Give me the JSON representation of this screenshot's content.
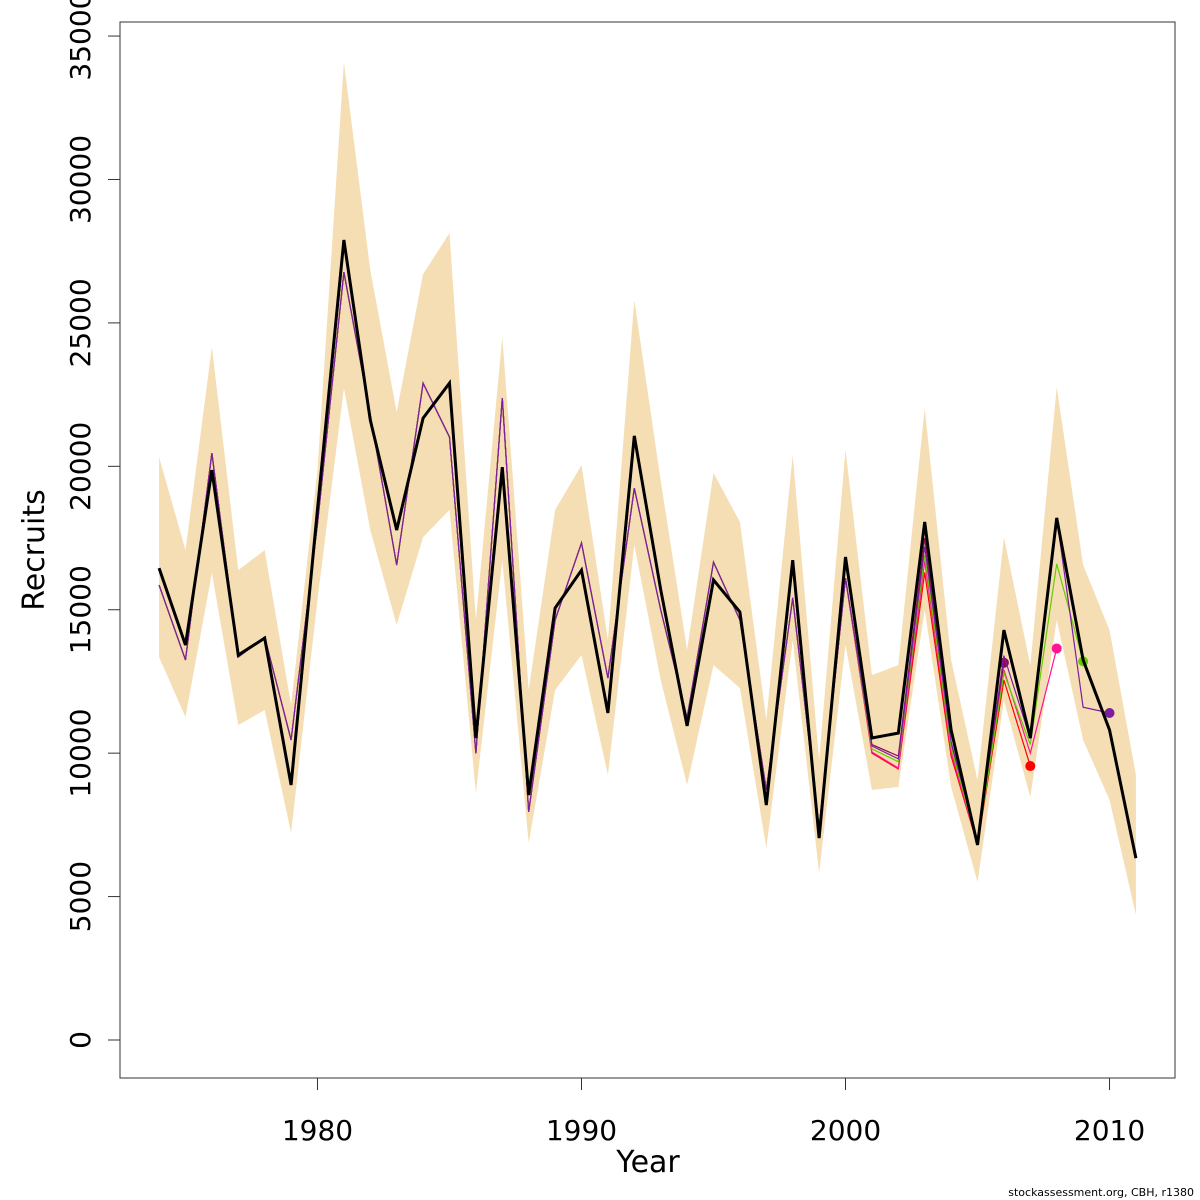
{
  "chart_data": {
    "type": "line",
    "x_label": "Year",
    "y_label": "Recruits",
    "footer": "stockassessment.org, CBH, r1380",
    "x": [
      1974,
      1975,
      1976,
      1977,
      1978,
      1979,
      1980,
      1981,
      1982,
      1983,
      1984,
      1985,
      1986,
      1987,
      1988,
      1989,
      1990,
      1991,
      1992,
      1993,
      1994,
      1995,
      1996,
      1997,
      1998,
      1999,
      2000,
      2001,
      2002,
      2003,
      2004,
      2005,
      2006,
      2007,
      2008,
      2009,
      2010,
      2011
    ],
    "band_color": "#f5deb3",
    "ci_upper": [
      20320,
      17080,
      24160,
      16380,
      17080,
      11680,
      19870,
      34090,
      26840,
      21890,
      26700,
      28130,
      14640,
      24510,
      12200,
      18480,
      20040,
      13940,
      25800,
      19500,
      13600,
      19770,
      18060,
      11160,
      20390,
      9760,
      20570,
      12720,
      13070,
      22030,
      13250,
      9060,
      17530,
      13070,
      22760,
      16560,
      14290,
      9240
    ],
    "ci_lower": [
      13350,
      11260,
      16280,
      10980,
      11500,
      7220,
      15340,
      22730,
      17780,
      14470,
      17530,
      18480,
      8610,
      16730,
      6870,
      12200,
      13420,
      9240,
      17260,
      12550,
      8890,
      13070,
      12270,
      6690,
      13940,
      5820,
      13770,
      8720,
      8820,
      14990,
      8820,
      5510,
      11850,
      8470,
      14640,
      10460,
      8370,
      4360
    ],
    "series": [
      {
        "color": "#8b0a50",
        "values": [
          15860,
          13250,
          20460,
          13350,
          14050,
          10460,
          18000,
          26770,
          21790,
          16560,
          22900,
          21020,
          10000,
          22380,
          7950,
          14640,
          17330,
          12620,
          19240,
          15000,
          11230,
          16660,
          14640,
          8720,
          15410,
          7390,
          16100,
          10300,
          9900,
          17500,
          10300,
          6900,
          13150,
          null,
          null,
          null,
          null,
          null
        ]
      },
      {
        "color": "#ff0000",
        "values": [
          15860,
          13250,
          20460,
          13350,
          14050,
          10460,
          18000,
          26770,
          21790,
          16560,
          22900,
          21020,
          10000,
          22380,
          7950,
          14640,
          17330,
          12620,
          19240,
          15000,
          11230,
          16660,
          14640,
          8720,
          15410,
          7390,
          16100,
          10000,
          9450,
          16300,
          9900,
          6800,
          12550,
          9550,
          null,
          null,
          null,
          null
        ]
      },
      {
        "color": "#ff1493",
        "values": [
          15860,
          13250,
          20460,
          13350,
          14050,
          10460,
          18000,
          26770,
          21790,
          16560,
          22900,
          21020,
          10000,
          22380,
          7950,
          14640,
          17330,
          12620,
          19240,
          15000,
          11230,
          16660,
          14640,
          8720,
          15410,
          7390,
          16100,
          10040,
          9480,
          16700,
          10040,
          6800,
          12900,
          10000,
          13650,
          null,
          null,
          null
        ]
      },
      {
        "color": "#66cc00",
        "values": [
          15860,
          13250,
          20460,
          13350,
          14050,
          10460,
          18000,
          26770,
          21790,
          16560,
          22900,
          21020,
          10000,
          22380,
          7950,
          14640,
          17330,
          12620,
          19240,
          15000,
          11230,
          16660,
          14640,
          8720,
          15410,
          7390,
          16100,
          10150,
          9700,
          16900,
          10200,
          6850,
          12800,
          10300,
          16600,
          13200,
          null,
          null
        ]
      },
      {
        "color": "#7a1fa2",
        "values": [
          15860,
          13250,
          20460,
          13350,
          14050,
          10460,
          18000,
          26770,
          21790,
          16560,
          22900,
          21020,
          10000,
          22380,
          7950,
          14640,
          17330,
          12620,
          19240,
          15000,
          11230,
          16660,
          14640,
          8720,
          15410,
          7390,
          16100,
          10250,
          9800,
          17200,
          10400,
          6900,
          13400,
          10500,
          18200,
          11600,
          11400,
          null
        ]
      },
      {
        "color": "#000000",
        "values": [
          16450,
          13770,
          19870,
          13420,
          14010,
          8890,
          18500,
          27890,
          21610,
          17780,
          21680,
          22900,
          10530,
          19970,
          8540,
          15060,
          16380,
          11400,
          21060,
          15700,
          10950,
          16040,
          14920,
          8190,
          16730,
          7040,
          16840,
          10530,
          10700,
          18060,
          10810,
          6800,
          14290,
          10530,
          18200,
          13250,
          10810,
          6340
        ]
      }
    ],
    "xlim": [
      1972.52,
      2012.48
    ],
    "ylim": [
      -1325,
      35490
    ],
    "xticks": [
      1980,
      1990,
      2000,
      2010
    ],
    "yticks": [
      0,
      5000,
      10000,
      15000,
      20000,
      25000,
      30000,
      35000
    ]
  }
}
